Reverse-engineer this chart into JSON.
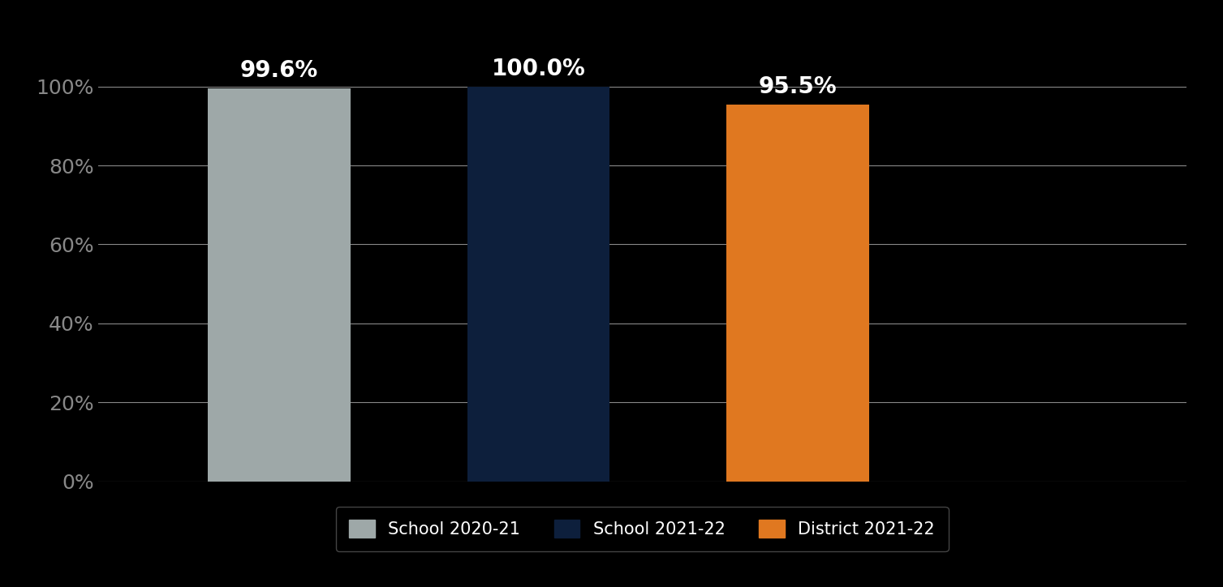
{
  "categories": [
    "School 2020-21",
    "School 2021-22",
    "District 2021-22"
  ],
  "values": [
    99.6,
    100.0,
    95.5
  ],
  "bar_colors": [
    "#9ea8a8",
    "#0d1f3c",
    "#e07820"
  ],
  "value_labels": [
    "99.6%",
    "100.0%",
    "95.5%"
  ],
  "ylim": [
    0,
    110
  ],
  "yticks": [
    0,
    20,
    40,
    60,
    80,
    100
  ],
  "ytick_labels": [
    "0%",
    "20%",
    "40%",
    "60%",
    "80%",
    "100%"
  ],
  "background_color": "#000000",
  "text_color": "#ffffff",
  "ytick_color": "#888888",
  "grid_color": "#888888",
  "label_fontsize": 18,
  "value_fontsize": 20,
  "legend_fontsize": 15,
  "bar_width": 0.55
}
